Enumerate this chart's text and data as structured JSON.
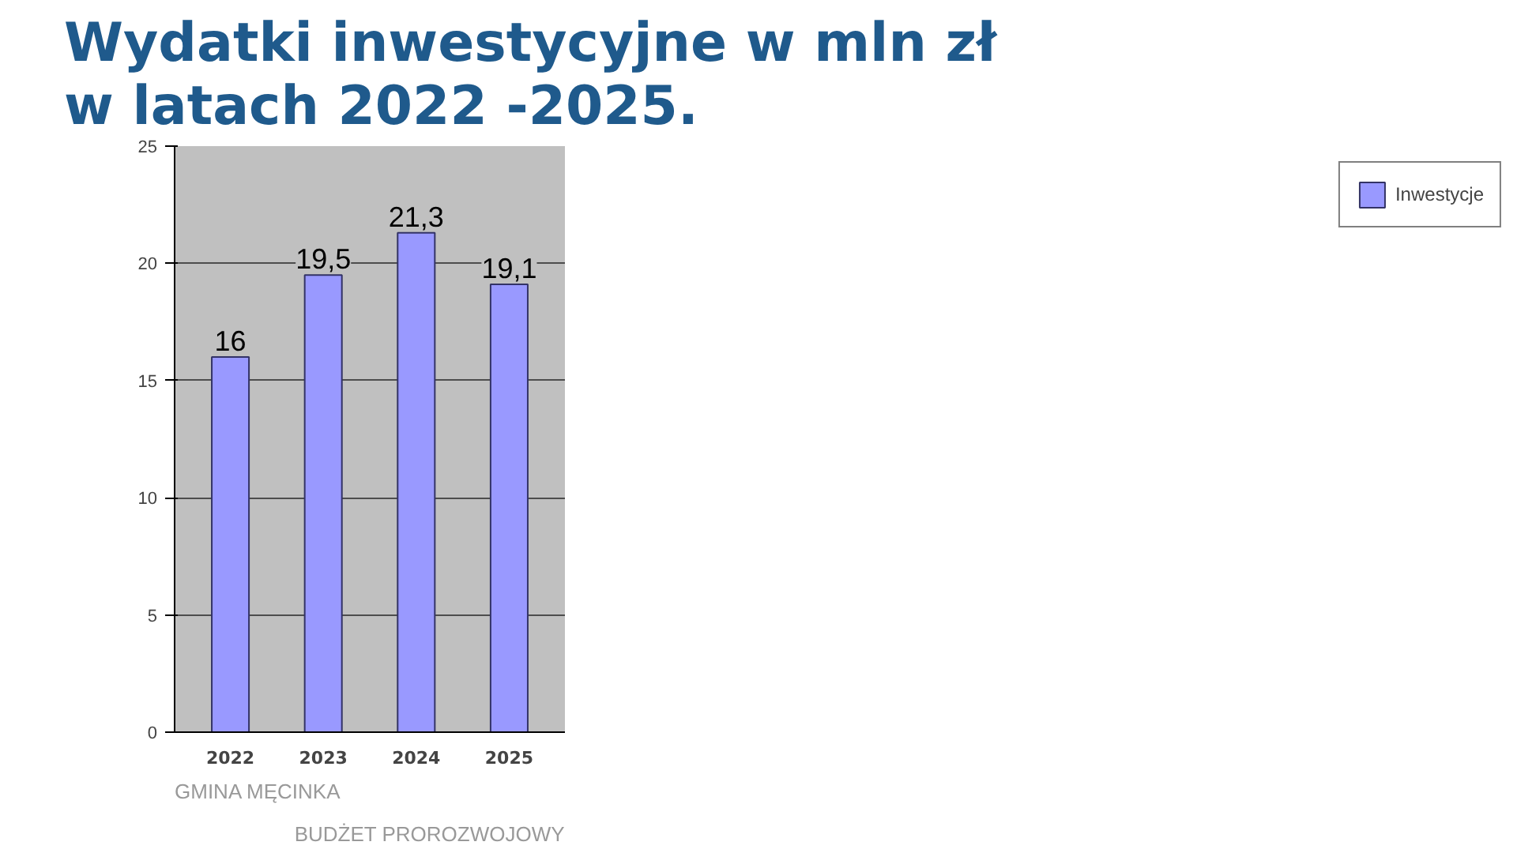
{
  "chart_data": {
    "type": "bar",
    "title": "Wydatki inwestycyjne w mln zł\nw latach 2022 -2025.",
    "categories": [
      "2022",
      "2023",
      "2024",
      "2025"
    ],
    "series": [
      {
        "name": "Inwestycje",
        "color": "#9999ff",
        "values": [
          16,
          19.5,
          21.3,
          19.1
        ]
      }
    ],
    "value_labels": [
      "16",
      "19,5",
      "21,3",
      "19,1"
    ],
    "ylim": [
      0,
      25
    ],
    "yticks": [
      0,
      5,
      10,
      15,
      20,
      25
    ],
    "grid": "y",
    "legend": "right",
    "annotations": [
      "GMINA MĘCINKA",
      "BUDŻET PROROZWOJOWY"
    ]
  }
}
